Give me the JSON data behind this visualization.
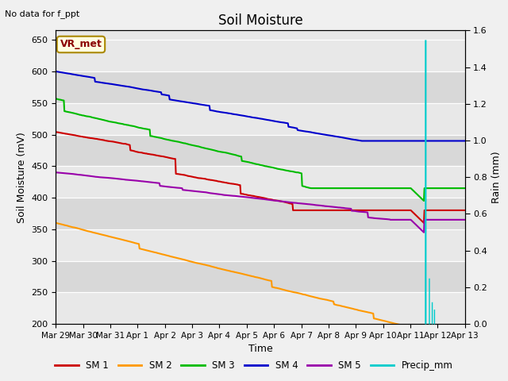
{
  "title": "Soil Moisture",
  "xlabel": "Time",
  "ylabel_left": "Soil Moisture (mV)",
  "ylabel_right": "Rain (mm)",
  "top_left_text": "No data for f_ppt",
  "legend_label": "VR_met",
  "fig_facecolor": "#f0f0f0",
  "plot_bg_bands": [
    "#e8e8e8",
    "#d8d8d8"
  ],
  "ylim_left": [
    200,
    665
  ],
  "ylim_right": [
    0.0,
    1.6
  ],
  "yticks_left": [
    200,
    250,
    300,
    350,
    400,
    450,
    500,
    550,
    600,
    650
  ],
  "yticks_right": [
    0.0,
    0.2,
    0.4,
    0.6,
    0.8,
    1.0,
    1.2,
    1.4,
    1.6
  ],
  "colors": {
    "SM1": "#cc0000",
    "SM2": "#ff9900",
    "SM3": "#00bb00",
    "SM4": "#0000cc",
    "SM5": "#9900aa",
    "Precip": "#00cccc"
  },
  "linewidth": 1.5,
  "xtick_labels": [
    "Mar 29",
    "Mar 30",
    "Mar 31",
    "Apr 1",
    "Apr 2",
    "Apr 3",
    "Apr 4",
    "Apr 5",
    "Apr 6",
    "Apr 7",
    "Apr 8",
    "Apr 9",
    "Apr 10",
    "Apr 11",
    "Apr 12",
    "Apr 13"
  ]
}
